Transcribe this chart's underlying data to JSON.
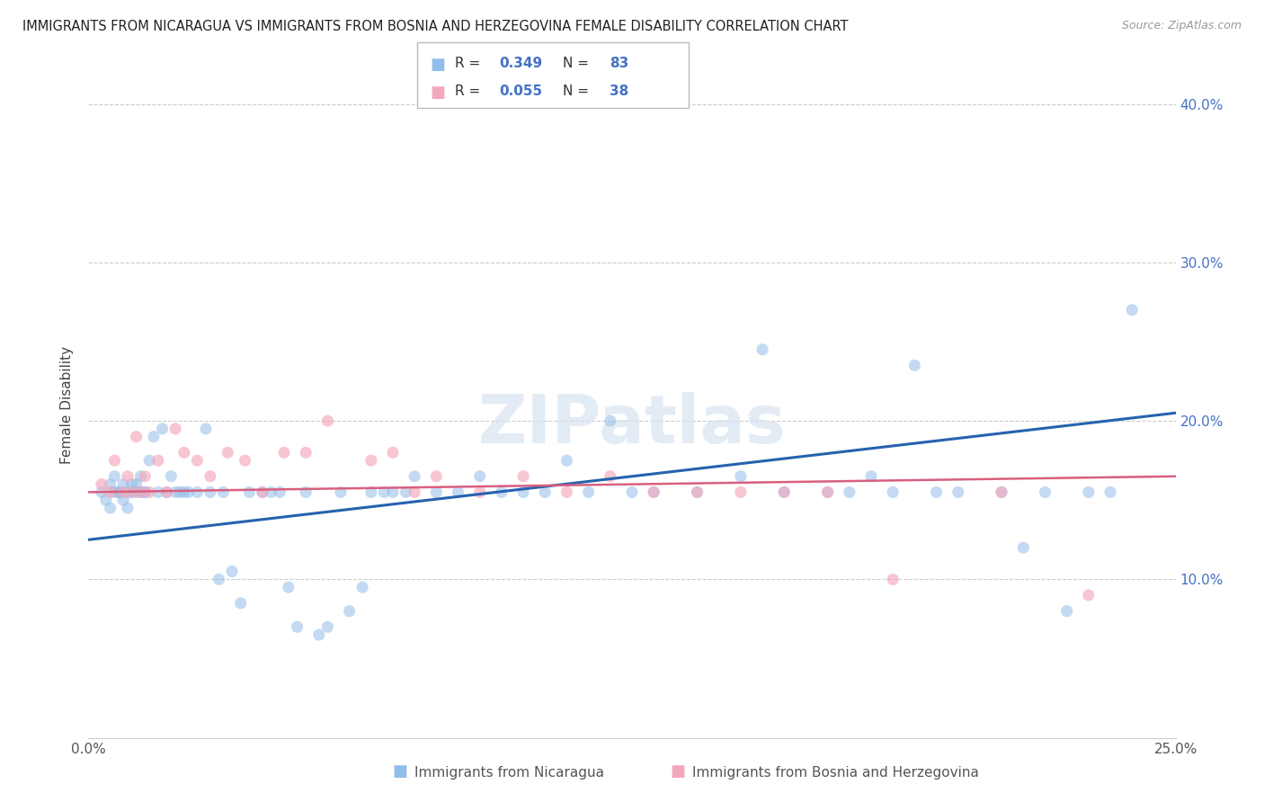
{
  "title": "IMMIGRANTS FROM NICARAGUA VS IMMIGRANTS FROM BOSNIA AND HERZEGOVINA FEMALE DISABILITY CORRELATION CHART",
  "source": "Source: ZipAtlas.com",
  "xlabel_blue": "Immigrants from Nicaragua",
  "xlabel_pink": "Immigrants from Bosnia and Herzegovina",
  "ylabel": "Female Disability",
  "R_blue": 0.349,
  "N_blue": 83,
  "R_pink": 0.055,
  "N_pink": 38,
  "xlim": [
    0.0,
    0.25
  ],
  "ylim": [
    0.0,
    0.42
  ],
  "xticks": [
    0.0,
    0.05,
    0.1,
    0.15,
    0.2,
    0.25
  ],
  "xtick_labels": [
    "0.0%",
    "",
    "",
    "",
    "",
    "25.0%"
  ],
  "ytick_labels": [
    "10.0%",
    "20.0%",
    "30.0%",
    "40.0%"
  ],
  "yticks": [
    0.1,
    0.2,
    0.3,
    0.4
  ],
  "blue_color": "#92bde8",
  "pink_color": "#f4a8bb",
  "trendline_blue": "#2563ae",
  "trendline_pink": "#d95f7f",
  "watermark_text": "ZIPatlas",
  "blue_trend_start_y": 0.125,
  "blue_trend_end_y": 0.205,
  "pink_trend_start_y": 0.155,
  "pink_trend_end_y": 0.165,
  "blue_x": [
    0.003,
    0.004,
    0.005,
    0.005,
    0.006,
    0.006,
    0.007,
    0.007,
    0.008,
    0.008,
    0.009,
    0.009,
    0.01,
    0.01,
    0.011,
    0.011,
    0.012,
    0.012,
    0.013,
    0.013,
    0.014,
    0.015,
    0.016,
    0.017,
    0.018,
    0.019,
    0.02,
    0.021,
    0.022,
    0.023,
    0.025,
    0.027,
    0.028,
    0.03,
    0.031,
    0.033,
    0.035,
    0.037,
    0.04,
    0.042,
    0.044,
    0.046,
    0.048,
    0.05,
    0.053,
    0.055,
    0.058,
    0.06,
    0.063,
    0.065,
    0.068,
    0.07,
    0.073,
    0.075,
    0.08,
    0.085,
    0.09,
    0.095,
    0.1,
    0.105,
    0.11,
    0.115,
    0.12,
    0.125,
    0.13,
    0.14,
    0.15,
    0.155,
    0.16,
    0.17,
    0.175,
    0.18,
    0.185,
    0.19,
    0.195,
    0.2,
    0.21,
    0.215,
    0.22,
    0.225,
    0.23,
    0.235,
    0.24
  ],
  "blue_y": [
    0.155,
    0.15,
    0.16,
    0.145,
    0.155,
    0.165,
    0.155,
    0.155,
    0.15,
    0.16,
    0.155,
    0.145,
    0.16,
    0.155,
    0.155,
    0.16,
    0.155,
    0.165,
    0.155,
    0.155,
    0.175,
    0.19,
    0.155,
    0.195,
    0.155,
    0.165,
    0.155,
    0.155,
    0.155,
    0.155,
    0.155,
    0.195,
    0.155,
    0.1,
    0.155,
    0.105,
    0.085,
    0.155,
    0.155,
    0.155,
    0.155,
    0.095,
    0.07,
    0.155,
    0.065,
    0.07,
    0.155,
    0.08,
    0.095,
    0.155,
    0.155,
    0.155,
    0.155,
    0.165,
    0.155,
    0.155,
    0.165,
    0.155,
    0.155,
    0.155,
    0.175,
    0.155,
    0.2,
    0.155,
    0.155,
    0.155,
    0.165,
    0.245,
    0.155,
    0.155,
    0.155,
    0.165,
    0.155,
    0.235,
    0.155,
    0.155,
    0.155,
    0.12,
    0.155,
    0.08,
    0.155,
    0.155,
    0.27
  ],
  "pink_x": [
    0.003,
    0.005,
    0.006,
    0.008,
    0.009,
    0.01,
    0.011,
    0.012,
    0.013,
    0.014,
    0.016,
    0.018,
    0.02,
    0.022,
    0.025,
    0.028,
    0.032,
    0.036,
    0.04,
    0.045,
    0.05,
    0.055,
    0.065,
    0.07,
    0.075,
    0.08,
    0.09,
    0.1,
    0.11,
    0.12,
    0.13,
    0.14,
    0.15,
    0.16,
    0.17,
    0.185,
    0.21,
    0.23
  ],
  "pink_y": [
    0.16,
    0.155,
    0.175,
    0.155,
    0.165,
    0.155,
    0.19,
    0.155,
    0.165,
    0.155,
    0.175,
    0.155,
    0.195,
    0.18,
    0.175,
    0.165,
    0.18,
    0.175,
    0.155,
    0.18,
    0.18,
    0.2,
    0.175,
    0.18,
    0.155,
    0.165,
    0.155,
    0.165,
    0.155,
    0.165,
    0.155,
    0.155,
    0.155,
    0.155,
    0.155,
    0.1,
    0.155,
    0.09
  ]
}
